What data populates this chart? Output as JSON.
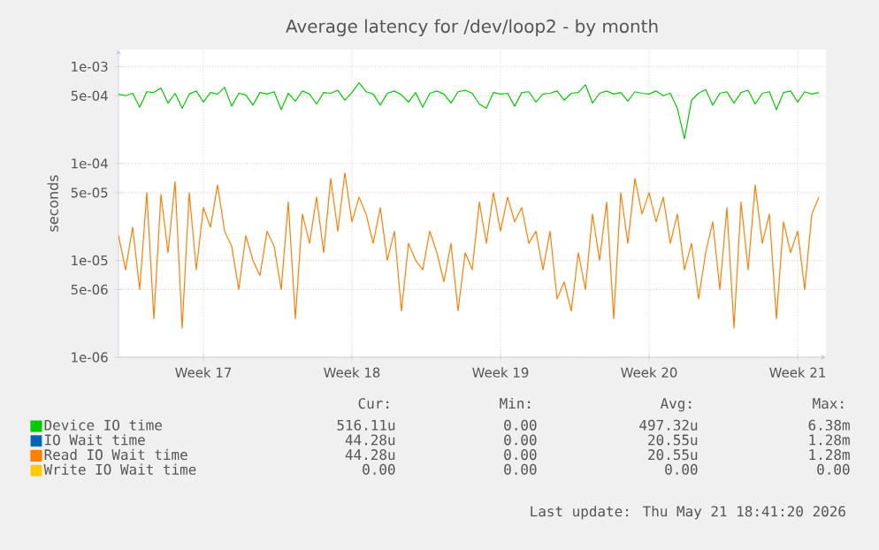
{
  "chart_data": {
    "type": "line",
    "title": "Average latency for /dev/loop2 - by month",
    "ylabel": "seconds",
    "log": "y",
    "grid": true,
    "legend": "bottom",
    "ylim": [
      1e-06,
      0.0015
    ],
    "yticks": [
      {
        "value": 1e-06,
        "label": "1e-06"
      },
      {
        "value": 5e-06,
        "label": "5e-06"
      },
      {
        "value": 1e-05,
        "label": "1e-05"
      },
      {
        "value": 5e-05,
        "label": "5e-05"
      },
      {
        "value": 0.0001,
        "label": "1e-04"
      },
      {
        "value": 0.0005,
        "label": "5e-04"
      },
      {
        "value": 0.001,
        "label": "1e-03"
      }
    ],
    "categories": [
      null,
      null,
      null,
      null,
      null,
      null,
      null,
      null,
      null,
      null,
      null,
      null,
      "Week 17",
      null,
      null,
      null,
      null,
      null,
      null,
      null,
      null,
      null,
      null,
      null,
      null,
      null,
      null,
      null,
      null,
      null,
      null,
      null,
      null,
      "Week 18",
      null,
      null,
      null,
      null,
      null,
      null,
      null,
      null,
      null,
      null,
      null,
      null,
      null,
      null,
      null,
      null,
      null,
      null,
      null,
      null,
      "Week 19",
      null,
      null,
      null,
      null,
      null,
      null,
      null,
      null,
      null,
      null,
      null,
      null,
      null,
      null,
      null,
      null,
      null,
      null,
      null,
      null,
      "Week 20",
      null,
      null,
      null,
      null,
      null,
      null,
      null,
      null,
      null,
      null,
      null,
      null,
      null,
      null,
      null,
      null,
      null,
      null,
      null,
      null,
      "Week 21",
      null,
      null,
      null
    ],
    "series": [
      {
        "name": "Device IO time",
        "color": "#00cc00",
        "values": [
          0.00052,
          0.0005,
          0.00053,
          0.00038,
          0.00055,
          0.00054,
          0.0006,
          0.00042,
          0.00053,
          0.00037,
          0.00052,
          0.00056,
          0.00043,
          0.00054,
          0.00052,
          0.00061,
          0.00039,
          0.00053,
          0.00051,
          0.0004,
          0.00054,
          0.00052,
          0.00055,
          0.00036,
          0.00053,
          0.00044,
          0.00056,
          0.00052,
          0.00041,
          0.00054,
          0.00053,
          0.00057,
          0.00045,
          0.00054,
          0.00068,
          0.00055,
          0.00052,
          0.0004,
          0.00053,
          0.00056,
          0.00051,
          0.00043,
          0.00054,
          0.00038,
          0.00053,
          0.00056,
          0.00052,
          0.00042,
          0.00055,
          0.00057,
          0.00053,
          0.00041,
          0.00037,
          0.00054,
          0.00052,
          0.00053,
          0.00039,
          0.00054,
          0.00055,
          0.00043,
          0.00052,
          0.00053,
          0.00056,
          0.00045,
          0.00053,
          0.00054,
          0.00065,
          0.00042,
          0.00053,
          0.00056,
          0.00052,
          0.00054,
          0.00044,
          0.00055,
          0.00053,
          0.00052,
          0.00056,
          0.0005,
          0.00053,
          0.00037,
          0.00018,
          0.00045,
          0.00053,
          0.00058,
          0.0004,
          0.00053,
          0.00055,
          0.00042,
          0.00054,
          0.00057,
          0.00041,
          0.00053,
          0.00055,
          0.00036,
          0.00054,
          0.00056,
          0.00043,
          0.00055,
          0.00052,
          0.00054
        ]
      },
      {
        "name": "IO Wait time",
        "color": "#0066b3",
        "values": [
          null,
          null,
          null,
          null,
          null,
          null,
          null,
          null,
          null,
          null,
          null,
          null,
          null,
          null,
          null,
          null,
          null,
          null,
          null,
          null,
          null,
          null,
          null,
          null,
          null,
          null,
          null,
          null,
          null,
          null,
          null,
          null,
          null,
          null,
          null,
          null,
          null,
          null,
          null,
          null,
          null,
          null,
          null,
          null,
          null,
          null,
          null,
          null,
          null,
          null,
          null,
          null,
          null,
          null,
          null,
          null,
          null,
          null,
          null,
          null,
          null,
          null,
          null,
          null,
          null,
          null,
          null,
          null,
          null,
          null,
          null,
          null,
          null,
          null,
          null,
          null,
          null,
          null,
          null,
          null,
          null,
          null,
          null,
          null,
          null,
          null,
          null,
          null,
          null,
          null,
          null,
          null,
          null,
          null,
          null,
          null,
          null,
          null,
          null,
          null
        ]
      },
      {
        "name": "Read IO Wait time",
        "color": "#ff8000",
        "values": [
          1.8e-05,
          8e-06,
          2.2e-05,
          5e-06,
          5e-05,
          2.5e-06,
          4.8e-05,
          1.2e-05,
          6.5e-05,
          2e-06,
          5e-05,
          8e-06,
          3.5e-05,
          2.2e-05,
          6e-05,
          2e-05,
          1.4e-05,
          5e-06,
          1.8e-05,
          1e-05,
          7e-06,
          2e-05,
          1.4e-05,
          5e-06,
          4e-05,
          2.5e-06,
          3e-05,
          1.5e-05,
          4.5e-05,
          1.2e-05,
          7e-05,
          2e-05,
          8e-05,
          2.5e-05,
          4.5e-05,
          3e-05,
          1.5e-05,
          3.5e-05,
          1e-05,
          2e-05,
          3e-06,
          1.5e-05,
          1e-05,
          8e-06,
          2e-05,
          1.2e-05,
          6e-06,
          1.5e-05,
          3e-06,
          1.2e-05,
          8e-06,
          4e-05,
          1.5e-05,
          5e-05,
          2e-05,
          4.5e-05,
          2.5e-05,
          3.5e-05,
          1.5e-05,
          2e-05,
          8e-06,
          2e-05,
          4e-06,
          6e-06,
          3e-06,
          1.2e-05,
          5e-06,
          3e-05,
          1e-05,
          4e-05,
          2.5e-06,
          5e-05,
          1.5e-05,
          7e-05,
          3e-05,
          5e-05,
          2.5e-05,
          4.5e-05,
          1.5e-05,
          3e-05,
          8e-06,
          1.5e-05,
          4e-06,
          1.2e-05,
          2.5e-05,
          5e-06,
          3.5e-05,
          2e-06,
          4e-05,
          8e-06,
          6e-05,
          1.5e-05,
          3e-05,
          2.5e-06,
          2.5e-05,
          1.2e-05,
          2e-05,
          5e-06,
          3e-05,
          4.5e-05
        ]
      },
      {
        "name": "Write IO Wait time",
        "color": "#ffcc00",
        "values": [
          null,
          null,
          null,
          null,
          null,
          null,
          null,
          null,
          null,
          null,
          null,
          null,
          null,
          null,
          null,
          null,
          null,
          null,
          null,
          null,
          null,
          null,
          null,
          null,
          null,
          null,
          null,
          null,
          null,
          null,
          null,
          null,
          null,
          null,
          null,
          null,
          null,
          null,
          null,
          null,
          null,
          null,
          null,
          null,
          null,
          null,
          null,
          null,
          null,
          null,
          null,
          null,
          null,
          null,
          null,
          null,
          null,
          null,
          null,
          null,
          null,
          null,
          null,
          null,
          null,
          null,
          null,
          null,
          null,
          null,
          null,
          null,
          null,
          null,
          null,
          null,
          null,
          null,
          null,
          null,
          null,
          null,
          null,
          null,
          null,
          null,
          null,
          null,
          null,
          null,
          null,
          null,
          null,
          null,
          null,
          null,
          null,
          null,
          null,
          null
        ]
      }
    ],
    "annotations": [
      "Cur:",
      "Min:",
      "Avg:",
      "Max:",
      "516.11u",
      "0.00",
      "497.32u",
      "6.38m",
      "44.28u",
      "0.00",
      "20.55u",
      "1.28m",
      "44.28u",
      "0.00",
      "20.55u",
      "1.28m",
      "0.00",
      "0.00",
      "0.00",
      "0.00",
      "Last update: Thu May 21 18:41:20 2026"
    ]
  }
}
